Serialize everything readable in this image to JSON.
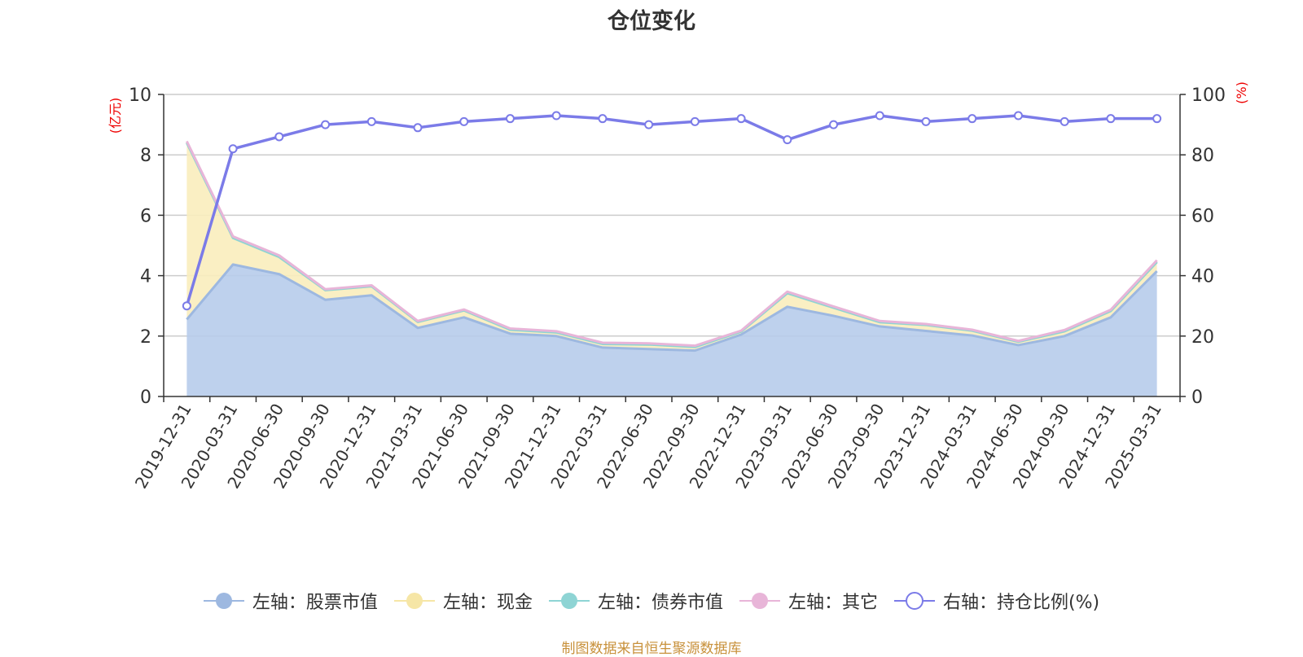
{
  "chart_data": {
    "type": "area",
    "title": "仓位变化",
    "categories": [
      "2019-12-31",
      "2020-03-31",
      "2020-06-30",
      "2020-09-30",
      "2020-12-31",
      "2021-03-31",
      "2021-06-30",
      "2021-09-30",
      "2021-12-31",
      "2022-03-31",
      "2022-06-30",
      "2022-09-30",
      "2022-12-31",
      "2023-03-31",
      "2023-06-30",
      "2023-09-30",
      "2023-12-31",
      "2024-03-31",
      "2024-06-30",
      "2024-09-30",
      "2024-12-31",
      "2025-03-31"
    ],
    "left_axis": {
      "unit": "(亿元)",
      "min": 0,
      "max": 10,
      "ticks": [
        0,
        2,
        4,
        6,
        8,
        10
      ]
    },
    "right_axis": {
      "unit": "(%)",
      "min": 0,
      "max": 100,
      "ticks": [
        0,
        20,
        40,
        60,
        80,
        100
      ]
    },
    "series": [
      {
        "name": "左轴：股票市值",
        "axis": "left",
        "stack": true,
        "color": "#9db8e0",
        "fill": "#b7cceb",
        "values": [
          2.55,
          4.37,
          4.05,
          3.2,
          3.35,
          2.27,
          2.62,
          2.08,
          2.0,
          1.62,
          1.57,
          1.52,
          2.05,
          2.97,
          2.67,
          2.32,
          2.17,
          2.02,
          1.7,
          2.0,
          2.62,
          4.15
        ]
      },
      {
        "name": "左轴：现金",
        "axis": "left",
        "stack": true,
        "color": "#f6e6a6",
        "fill": "#faedbd",
        "values": [
          5.85,
          0.88,
          0.57,
          0.32,
          0.3,
          0.2,
          0.23,
          0.13,
          0.12,
          0.12,
          0.15,
          0.12,
          0.1,
          0.45,
          0.27,
          0.14,
          0.2,
          0.16,
          0.11,
          0.16,
          0.21,
          0.3
        ]
      },
      {
        "name": "左轴：债券市值",
        "axis": "left",
        "stack": true,
        "color": "#8ed4d4",
        "fill": "#a6dede",
        "values": [
          0,
          0,
          0,
          0,
          0,
          0,
          0,
          0,
          0,
          0,
          0,
          0,
          0,
          0,
          0,
          0,
          0,
          0,
          0,
          0,
          0,
          0
        ]
      },
      {
        "name": "左轴：其它",
        "axis": "left",
        "stack": true,
        "color": "#e8b5d8",
        "fill": "#e8b5d8",
        "values": [
          0.05,
          0.05,
          0.05,
          0.03,
          0.03,
          0.03,
          0.03,
          0.04,
          0.04,
          0.04,
          0.04,
          0.04,
          0.03,
          0.05,
          0.04,
          0.04,
          0.03,
          0.03,
          0.03,
          0.04,
          0.04,
          0.06
        ]
      },
      {
        "name": "右轴：持仓比例(%)",
        "axis": "right",
        "stack": false,
        "color": "#7b7be8",
        "values": [
          30,
          82,
          86,
          90,
          91,
          89,
          91,
          92,
          93,
          92,
          90,
          91,
          92,
          85,
          90,
          93,
          91,
          92,
          93,
          91,
          92,
          92
        ]
      }
    ],
    "grid": true,
    "legend_position": "bottom"
  },
  "source_text": "制图数据来自恒生聚源数据库"
}
